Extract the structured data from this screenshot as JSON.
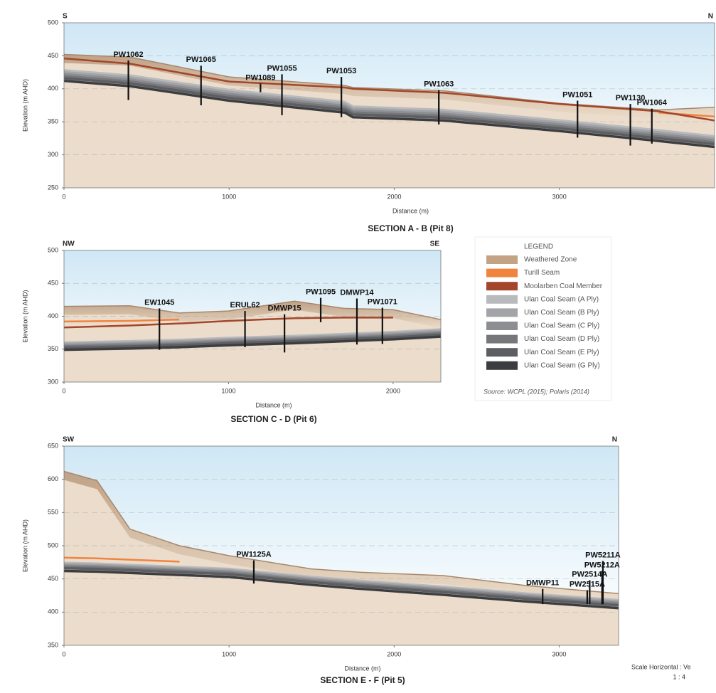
{
  "chart_data": [
    {
      "type": "section",
      "title": "SECTION A - B  (Pit 8)",
      "left_label": "S",
      "right_label": "N",
      "xlabel": "Distance (m)",
      "ylabel": "Elevation (m AHD)",
      "xlim": [
        0,
        3940
      ],
      "ylim": [
        250,
        500
      ],
      "xticks": [
        0,
        1000,
        2000,
        3000
      ],
      "yticks": [
        250,
        300,
        350,
        400,
        450,
        500
      ],
      "grid": true,
      "x": [
        0,
        400,
        1000,
        1700,
        1750,
        2300,
        3000,
        3600,
        3940
      ],
      "series": [
        {
          "values": [
            452,
            448,
            418,
            405,
            402,
            397,
            378,
            368,
            372
          ]
        },
        {
          "values": [
            null,
            null,
            null,
            null,
            null,
            null,
            null,
            364,
            358
          ]
        },
        {
          "values": [
            446,
            438,
            411,
            402,
            400,
            394,
            377,
            366,
            352
          ]
        },
        {
          "values": [
            428,
            420,
            398,
            380,
            373,
            368,
            352,
            337,
            328
          ]
        },
        {
          "values": [
            425,
            417,
            395,
            377,
            370,
            365,
            349,
            334,
            325
          ]
        },
        {
          "values": [
            422,
            414,
            392,
            374,
            367,
            362,
            346,
            331,
            322
          ]
        },
        {
          "values": [
            419,
            411,
            389,
            371,
            364,
            359,
            343,
            328,
            319
          ]
        },
        {
          "values": [
            416,
            408,
            386,
            368,
            361,
            356,
            340,
            325,
            316
          ]
        },
        {
          "values": [
            412,
            404,
            382,
            364,
            357,
            352,
            336,
            321,
            312
          ]
        }
      ],
      "bores": [
        {
          "name": "PW1062",
          "x": 390,
          "top": 443,
          "bottom": 383
        },
        {
          "name": "PW1065",
          "x": 830,
          "top": 435,
          "bottom": 375
        },
        {
          "name": "PW1089",
          "x": 1190,
          "top": 408,
          "bottom": 395
        },
        {
          "name": "PW1055",
          "x": 1320,
          "top": 422,
          "bottom": 360
        },
        {
          "name": "PW1053",
          "x": 1680,
          "top": 418,
          "bottom": 357
        },
        {
          "name": "PW1063",
          "x": 2270,
          "top": 398,
          "bottom": 346
        },
        {
          "name": "PW1051",
          "x": 3110,
          "top": 382,
          "bottom": 326
        },
        {
          "name": "PW1130",
          "x": 3430,
          "top": 377,
          "bottom": 314
        },
        {
          "name": "PW1064",
          "x": 3560,
          "top": 370,
          "bottom": 317
        }
      ]
    },
    {
      "type": "section",
      "title": "SECTION C - D  (Pit 6)",
      "left_label": "NW",
      "right_label": "SE",
      "xlabel": "Distance (m)",
      "ylabel": "Elevation (m AHD)",
      "xlim": [
        0,
        2290
      ],
      "ylim": [
        300,
        500
      ],
      "xticks": [
        0,
        1000,
        2000
      ],
      "yticks": [
        300,
        350,
        400,
        450,
        500
      ],
      "grid": true,
      "x": [
        0,
        400,
        700,
        1000,
        1400,
        1700,
        2000,
        2290
      ],
      "series": [
        {
          "values": [
            415,
            416,
            405,
            408,
            423,
            412,
            410,
            395
          ]
        },
        {
          "values": [
            392,
            393,
            395,
            null,
            null,
            null,
            null,
            null
          ]
        },
        {
          "values": [
            383,
            386,
            389,
            393,
            397,
            398,
            398,
            null
          ]
        },
        {
          "values": [
            360,
            362,
            364,
            367,
            370,
            373,
            376,
            380
          ]
        },
        {
          "values": [
            358,
            360,
            362,
            365,
            368,
            371,
            374,
            378
          ]
        },
        {
          "values": [
            356,
            358,
            360,
            363,
            366,
            369,
            372,
            376
          ]
        },
        {
          "values": [
            354,
            356,
            358,
            361,
            364,
            367,
            370,
            374
          ]
        },
        {
          "values": [
            352,
            354,
            356,
            359,
            362,
            365,
            368,
            372
          ]
        },
        {
          "values": [
            349,
            351,
            353,
            356,
            359,
            362,
            365,
            369
          ]
        }
      ],
      "bores": [
        {
          "name": "EW1045",
          "x": 580,
          "top": 412,
          "bottom": 349
        },
        {
          "name": "ERUL62",
          "x": 1100,
          "top": 408,
          "bottom": 353
        },
        {
          "name": "DMWP15",
          "x": 1340,
          "top": 403,
          "bottom": 345
        },
        {
          "name": "PW1095",
          "x": 1560,
          "top": 428,
          "bottom": 391
        },
        {
          "name": "DMWP14",
          "x": 1780,
          "top": 427,
          "bottom": 357
        },
        {
          "name": "PW1071",
          "x": 1935,
          "top": 413,
          "bottom": 358
        }
      ]
    },
    {
      "type": "section",
      "title": "SECTION E - F  (Pit 5)",
      "left_label": "SW",
      "right_label": "N",
      "xlabel": "Distance (m)",
      "ylabel": "Elevation (m AHD)",
      "xlim": [
        0,
        3360
      ],
      "ylim": [
        350,
        650
      ],
      "xticks": [
        0,
        1000,
        2000,
        3000
      ],
      "yticks": [
        350,
        400,
        450,
        500,
        550,
        600,
        650
      ],
      "grid": true,
      "x": [
        0,
        200,
        400,
        700,
        1000,
        1500,
        1800,
        2300,
        2800,
        3360
      ],
      "series": [
        {
          "values": [
            612,
            598,
            525,
            500,
            485,
            465,
            460,
            455,
            440,
            428
          ]
        },
        {
          "values": [
            482,
            481,
            479,
            476,
            null,
            null,
            null,
            null,
            null,
            null
          ]
        },
        {
          "values": [
            null,
            null,
            null,
            null,
            null,
            null,
            null,
            null,
            null,
            null
          ]
        },
        {
          "values": [
            474,
            473,
            471,
            468,
            465,
            453,
            447,
            438,
            428,
            418
          ]
        },
        {
          "values": [
            472,
            471,
            469,
            466,
            463,
            451,
            445,
            436,
            426,
            416
          ]
        },
        {
          "values": [
            470,
            469,
            467,
            464,
            461,
            449,
            443,
            434,
            424,
            414
          ]
        },
        {
          "values": [
            468,
            467,
            465,
            462,
            459,
            447,
            441,
            432,
            422,
            412
          ]
        },
        {
          "values": [
            466,
            465,
            463,
            460,
            457,
            445,
            439,
            430,
            420,
            410
          ]
        },
        {
          "values": [
            462,
            461,
            459,
            456,
            453,
            441,
            435,
            426,
            416,
            406
          ]
        }
      ],
      "bores": [
        {
          "name": "PW1125A",
          "x": 1150,
          "top": 478,
          "bottom": 443
        },
        {
          "name": "DMWP11",
          "x": 2900,
          "top": 435,
          "bottom": 412
        },
        {
          "name": "PW2515A",
          "x": 3170,
          "top": 433,
          "bottom": 412
        },
        {
          "name": "PW2514A",
          "x": 3185,
          "top": 448,
          "bottom": 412
        },
        {
          "name": "PW5212A",
          "x": 3260,
          "top": 462,
          "bottom": 412
        },
        {
          "name": "PW5211A",
          "x": 3265,
          "top": 477,
          "bottom": 412
        }
      ]
    }
  ],
  "legend": {
    "title": "LEGEND",
    "items": [
      {
        "name": "Weathered Zone",
        "color": "#c4a384"
      },
      {
        "name": "Turill Seam",
        "color": "#f0843f"
      },
      {
        "name": "Moolarben Coal Member",
        "color": "#a3462b"
      },
      {
        "name": "Ulan Coal Seam (A Ply)",
        "color": "#b8babd"
      },
      {
        "name": "Ulan Coal Seam (B Ply)",
        "color": "#a2a4a7"
      },
      {
        "name": "Ulan Coal Seam (C Ply)",
        "color": "#8c8e91"
      },
      {
        "name": "Ulan Coal Seam (D Ply)",
        "color": "#75777a"
      },
      {
        "name": "Ulan Coal Seam (E Ply)",
        "color": "#5c5e61"
      },
      {
        "name": "Ulan Coal Seam (G Ply)",
        "color": "#3c3d40"
      }
    ]
  },
  "source": "Source:  WCPL (2015); Polaris (2014)",
  "scale": [
    "Scale Horizontal  : Ve",
    "1 : 4"
  ]
}
